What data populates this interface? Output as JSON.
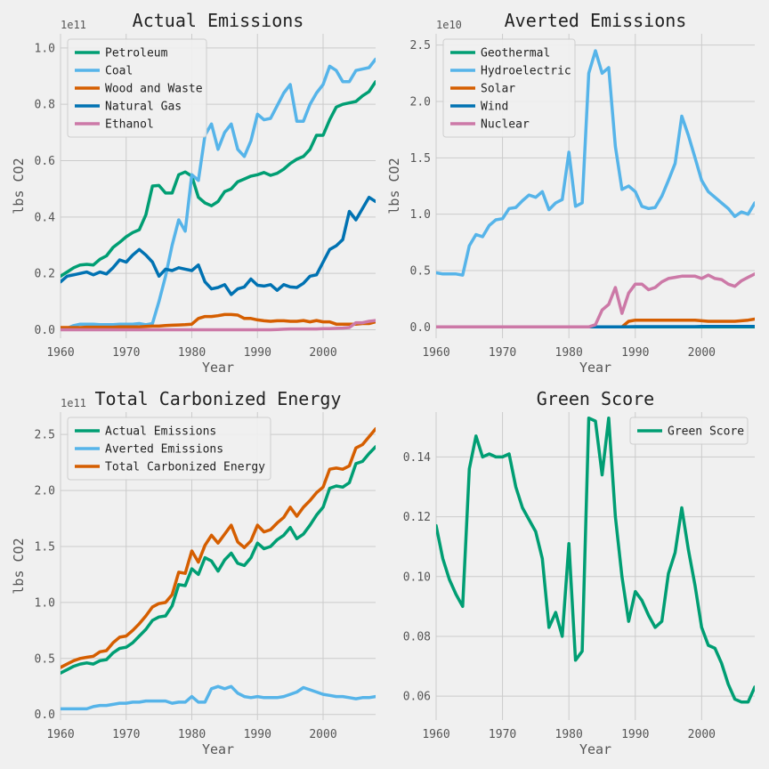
{
  "colors": {
    "background": "#f0f0f0",
    "grid": "#cbcbcb",
    "legend_bg": "#f0f0f0",
    "legend_border": "#cccccc"
  },
  "chart_data": [
    {
      "type": "line",
      "title": "Actual Emissions",
      "xlabel": "Year",
      "ylabel": "lbs CO2",
      "offset_label": "1e11",
      "xlim": [
        1960,
        2008
      ],
      "ylim": [
        -0.03,
        1.05
      ],
      "xticks": [
        1960,
        1970,
        1980,
        1990,
        2000
      ],
      "xtick_labels": [
        "1960",
        "1970",
        "1980",
        "1990",
        "2000"
      ],
      "yticks": [
        0.0,
        0.2,
        0.4,
        0.6,
        0.8,
        1.0
      ],
      "ytick_labels": [
        "0.0",
        "0.2",
        "0.4",
        "0.6",
        "0.8",
        "1.0"
      ],
      "legend_position": "top-left",
      "grid": true,
      "x": [
        1960,
        1961,
        1962,
        1963,
        1964,
        1965,
        1966,
        1967,
        1968,
        1969,
        1970,
        1971,
        1972,
        1973,
        1974,
        1975,
        1976,
        1977,
        1978,
        1979,
        1980,
        1981,
        1982,
        1983,
        1984,
        1985,
        1986,
        1987,
        1988,
        1989,
        1990,
        1991,
        1992,
        1993,
        1994,
        1995,
        1996,
        1997,
        1998,
        1999,
        2000,
        2001,
        2002,
        2003,
        2004,
        2005,
        2006,
        2007,
        2008
      ],
      "series": [
        {
          "name": "Petroleum",
          "color": "#009e73",
          "values": [
            0.19,
            0.205,
            0.22,
            0.23,
            0.232,
            0.23,
            0.25,
            0.262,
            0.292,
            0.31,
            0.33,
            0.345,
            0.355,
            0.408,
            0.51,
            0.512,
            0.485,
            0.485,
            0.55,
            0.56,
            0.545,
            0.47,
            0.45,
            0.44,
            0.455,
            0.49,
            0.5,
            0.525,
            0.535,
            0.545,
            0.55,
            0.558,
            0.548,
            0.555,
            0.57,
            0.59,
            0.605,
            0.615,
            0.64,
            0.69,
            0.69,
            0.745,
            0.79,
            0.8,
            0.805,
            0.81,
            0.83,
            0.845,
            0.88
          ]
        },
        {
          "name": "Coal",
          "color": "#56b4e9",
          "values": [
            0.002,
            0.005,
            0.015,
            0.02,
            0.02,
            0.02,
            0.018,
            0.018,
            0.018,
            0.02,
            0.02,
            0.02,
            0.022,
            0.018,
            0.022,
            0.1,
            0.19,
            0.3,
            0.39,
            0.35,
            0.55,
            0.53,
            0.69,
            0.73,
            0.64,
            0.7,
            0.73,
            0.64,
            0.615,
            0.67,
            0.765,
            0.745,
            0.75,
            0.795,
            0.84,
            0.87,
            0.74,
            0.74,
            0.8,
            0.84,
            0.87,
            0.935,
            0.92,
            0.88,
            0.88,
            0.92,
            0.925,
            0.93,
            0.96
          ]
        },
        {
          "name": "Wood and Waste",
          "color": "#d55e00",
          "values": [
            0.008,
            0.008,
            0.008,
            0.008,
            0.009,
            0.009,
            0.009,
            0.009,
            0.009,
            0.01,
            0.01,
            0.01,
            0.01,
            0.012,
            0.013,
            0.013,
            0.015,
            0.016,
            0.017,
            0.018,
            0.02,
            0.04,
            0.047,
            0.047,
            0.05,
            0.054,
            0.054,
            0.052,
            0.04,
            0.04,
            0.035,
            0.032,
            0.03,
            0.032,
            0.032,
            0.03,
            0.03,
            0.033,
            0.028,
            0.033,
            0.028,
            0.028,
            0.02,
            0.02,
            0.02,
            0.02,
            0.022,
            0.022,
            0.028
          ]
        },
        {
          "name": "Natural Gas",
          "color": "#0072b2",
          "values": [
            0.17,
            0.19,
            0.195,
            0.2,
            0.205,
            0.195,
            0.205,
            0.198,
            0.22,
            0.248,
            0.24,
            0.265,
            0.285,
            0.265,
            0.24,
            0.19,
            0.215,
            0.21,
            0.22,
            0.215,
            0.21,
            0.23,
            0.17,
            0.145,
            0.15,
            0.16,
            0.125,
            0.145,
            0.152,
            0.18,
            0.158,
            0.155,
            0.16,
            0.14,
            0.16,
            0.152,
            0.15,
            0.165,
            0.19,
            0.195,
            0.24,
            0.285,
            0.298,
            0.32,
            0.42,
            0.39,
            0.43,
            0.47,
            0.455
          ]
        },
        {
          "name": "Ethanol",
          "color": "#cc79a7",
          "values": [
            0,
            0,
            0,
            0,
            0,
            0,
            0,
            0,
            0,
            0,
            0,
            0,
            0,
            0,
            0,
            0,
            0,
            0,
            0,
            0,
            0,
            0,
            0,
            0,
            0,
            0,
            0,
            0,
            0,
            0,
            0,
            0,
            0,
            0.001,
            0.002,
            0.003,
            0.003,
            0.003,
            0.003,
            0.003,
            0.004,
            0.004,
            0.005,
            0.006,
            0.008,
            0.025,
            0.025,
            0.03,
            0.033
          ]
        }
      ]
    },
    {
      "type": "line",
      "title": "Averted Emissions",
      "xlabel": "Year",
      "ylabel": "lbs CO2",
      "offset_label": "1e10",
      "xlim": [
        1960,
        2008
      ],
      "ylim": [
        -0.1,
        2.6
      ],
      "xticks": [
        1960,
        1970,
        1980,
        1990,
        2000
      ],
      "xtick_labels": [
        "1960",
        "1970",
        "1980",
        "1990",
        "2000"
      ],
      "yticks": [
        0.0,
        0.5,
        1.0,
        1.5,
        2.0,
        2.5
      ],
      "ytick_labels": [
        "0.0",
        "0.5",
        "1.0",
        "1.5",
        "2.0",
        "2.5"
      ],
      "legend_position": "top-left",
      "grid": true,
      "x": [
        1960,
        1961,
        1962,
        1963,
        1964,
        1965,
        1966,
        1967,
        1968,
        1969,
        1970,
        1971,
        1972,
        1973,
        1974,
        1975,
        1976,
        1977,
        1978,
        1979,
        1980,
        1981,
        1982,
        1983,
        1984,
        1985,
        1986,
        1987,
        1988,
        1989,
        1990,
        1991,
        1992,
        1993,
        1994,
        1995,
        1996,
        1997,
        1998,
        1999,
        2000,
        2001,
        2002,
        2003,
        2004,
        2005,
        2006,
        2007,
        2008
      ],
      "series": [
        {
          "name": "Geothermal",
          "color": "#009e73",
          "values": [
            0,
            0,
            0,
            0,
            0,
            0,
            0,
            0,
            0,
            0,
            0,
            0,
            0,
            0,
            0,
            0,
            0,
            0,
            0,
            0,
            0,
            0,
            0,
            0,
            0,
            0,
            0,
            0,
            0,
            0,
            0,
            0,
            0,
            0,
            0,
            0,
            0,
            0,
            0,
            0,
            0,
            0,
            0,
            0,
            0,
            0,
            0,
            0,
            0
          ]
        },
        {
          "name": "Hydroelectric",
          "color": "#56b4e9",
          "values": [
            0.48,
            0.47,
            0.47,
            0.47,
            0.46,
            0.72,
            0.82,
            0.8,
            0.9,
            0.95,
            0.96,
            1.05,
            1.06,
            1.12,
            1.17,
            1.15,
            1.2,
            1.04,
            1.1,
            1.13,
            1.55,
            1.07,
            1.1,
            2.25,
            2.45,
            2.25,
            2.3,
            1.6,
            1.22,
            1.25,
            1.2,
            1.07,
            1.05,
            1.06,
            1.16,
            1.3,
            1.45,
            1.87,
            1.7,
            1.5,
            1.3,
            1.2,
            1.15,
            1.1,
            1.05,
            0.98,
            1.02,
            1.0,
            1.1
          ]
        },
        {
          "name": "Solar",
          "color": "#d55e00",
          "values": [
            0,
            0,
            0,
            0,
            0,
            0,
            0,
            0,
            0,
            0,
            0,
            0,
            0,
            0,
            0,
            0,
            0,
            0,
            0,
            0,
            0,
            0,
            0,
            0,
            0,
            0,
            0,
            0,
            0,
            0.05,
            0.06,
            0.06,
            0.06,
            0.06,
            0.06,
            0.06,
            0.06,
            0.06,
            0.06,
            0.06,
            0.055,
            0.05,
            0.05,
            0.05,
            0.05,
            0.05,
            0.055,
            0.06,
            0.07
          ]
        },
        {
          "name": "Wind",
          "color": "#0072b2",
          "values": [
            0,
            0,
            0,
            0,
            0,
            0,
            0,
            0,
            0,
            0,
            0,
            0,
            0,
            0,
            0,
            0,
            0,
            0,
            0,
            0,
            0,
            0,
            0,
            0,
            0,
            0,
            0,
            0,
            0,
            0.002,
            0.003,
            0.003,
            0.003,
            0.003,
            0.003,
            0.003,
            0.003,
            0.003,
            0.003,
            0.003,
            0.005,
            0.005,
            0.005,
            0.005,
            0.005,
            0.005,
            0.005,
            0.005,
            0.005
          ]
        },
        {
          "name": "Nuclear",
          "color": "#cc79a7",
          "values": [
            0,
            0,
            0,
            0,
            0,
            0,
            0,
            0,
            0,
            0,
            0,
            0,
            0,
            0,
            0,
            0,
            0,
            0,
            0,
            0,
            0,
            0,
            0,
            0,
            0.02,
            0.15,
            0.2,
            0.35,
            0.12,
            0.3,
            0.38,
            0.38,
            0.33,
            0.35,
            0.4,
            0.43,
            0.44,
            0.45,
            0.45,
            0.45,
            0.43,
            0.46,
            0.43,
            0.42,
            0.38,
            0.36,
            0.41,
            0.44,
            0.47
          ]
        }
      ]
    },
    {
      "type": "line",
      "title": "Total Carbonized Energy",
      "xlabel": "Year",
      "ylabel": "lbs CO2",
      "offset_label": "1e11",
      "xlim": [
        1960,
        2008
      ],
      "ylim": [
        -0.05,
        2.7
      ],
      "xticks": [
        1960,
        1970,
        1980,
        1990,
        2000
      ],
      "xtick_labels": [
        "1960",
        "1970",
        "1980",
        "1990",
        "2000"
      ],
      "yticks": [
        0.0,
        0.5,
        1.0,
        1.5,
        2.0,
        2.5
      ],
      "ytick_labels": [
        "0.0",
        "0.5",
        "1.0",
        "1.5",
        "2.0",
        "2.5"
      ],
      "legend_position": "top-left",
      "grid": true,
      "x": [
        1960,
        1961,
        1962,
        1963,
        1964,
        1965,
        1966,
        1967,
        1968,
        1969,
        1970,
        1971,
        1972,
        1973,
        1974,
        1975,
        1976,
        1977,
        1978,
        1979,
        1980,
        1981,
        1982,
        1983,
        1984,
        1985,
        1986,
        1987,
        1988,
        1989,
        1990,
        1991,
        1992,
        1993,
        1994,
        1995,
        1996,
        1997,
        1998,
        1999,
        2000,
        2001,
        2002,
        2003,
        2004,
        2005,
        2006,
        2007,
        2008
      ],
      "series": [
        {
          "name": "Actual Emissions",
          "color": "#009e73",
          "values": [
            0.37,
            0.4,
            0.43,
            0.45,
            0.46,
            0.45,
            0.48,
            0.49,
            0.55,
            0.59,
            0.6,
            0.64,
            0.7,
            0.76,
            0.84,
            0.87,
            0.88,
            0.97,
            1.16,
            1.15,
            1.3,
            1.25,
            1.4,
            1.37,
            1.28,
            1.38,
            1.44,
            1.35,
            1.33,
            1.4,
            1.53,
            1.48,
            1.5,
            1.56,
            1.6,
            1.67,
            1.57,
            1.61,
            1.69,
            1.78,
            1.85,
            2.02,
            2.04,
            2.03,
            2.07,
            2.24,
            2.26,
            2.33,
            2.39
          ]
        },
        {
          "name": "Averted Emissions",
          "color": "#56b4e9",
          "values": [
            0.05,
            0.05,
            0.05,
            0.05,
            0.05,
            0.07,
            0.08,
            0.08,
            0.09,
            0.1,
            0.1,
            0.11,
            0.11,
            0.12,
            0.12,
            0.12,
            0.12,
            0.1,
            0.11,
            0.11,
            0.16,
            0.11,
            0.11,
            0.23,
            0.25,
            0.23,
            0.25,
            0.19,
            0.16,
            0.15,
            0.16,
            0.15,
            0.15,
            0.15,
            0.16,
            0.18,
            0.2,
            0.24,
            0.22,
            0.2,
            0.18,
            0.17,
            0.16,
            0.16,
            0.15,
            0.14,
            0.15,
            0.15,
            0.16
          ]
        },
        {
          "name": "Total Carbonized Energy",
          "color": "#d55e00",
          "values": [
            0.42,
            0.45,
            0.48,
            0.5,
            0.51,
            0.52,
            0.56,
            0.57,
            0.64,
            0.69,
            0.7,
            0.75,
            0.81,
            0.88,
            0.96,
            0.99,
            1.0,
            1.07,
            1.27,
            1.26,
            1.46,
            1.36,
            1.51,
            1.6,
            1.53,
            1.61,
            1.69,
            1.54,
            1.49,
            1.55,
            1.69,
            1.63,
            1.65,
            1.71,
            1.76,
            1.85,
            1.77,
            1.85,
            1.91,
            1.98,
            2.03,
            2.19,
            2.2,
            2.19,
            2.22,
            2.38,
            2.41,
            2.48,
            2.55
          ]
        }
      ]
    },
    {
      "type": "line",
      "title": "Green Score",
      "xlabel": "Year",
      "ylabel": "",
      "offset_label": "",
      "xlim": [
        1960,
        2008
      ],
      "ylim": [
        0.052,
        0.155
      ],
      "xticks": [
        1960,
        1970,
        1980,
        1990,
        2000
      ],
      "xtick_labels": [
        "1960",
        "1970",
        "1980",
        "1990",
        "2000"
      ],
      "yticks": [
        0.06,
        0.08,
        0.1,
        0.12,
        0.14
      ],
      "ytick_labels": [
        "0.06",
        "0.08",
        "0.10",
        "0.12",
        "0.14"
      ],
      "legend_position": "top-right",
      "grid": true,
      "x": [
        1960,
        1961,
        1962,
        1963,
        1964,
        1965,
        1966,
        1967,
        1968,
        1969,
        1970,
        1971,
        1972,
        1973,
        1974,
        1975,
        1976,
        1977,
        1978,
        1979,
        1980,
        1981,
        1982,
        1983,
        1984,
        1985,
        1986,
        1987,
        1988,
        1989,
        1990,
        1991,
        1992,
        1993,
        1994,
        1995,
        1996,
        1997,
        1998,
        1999,
        2000,
        2001,
        2002,
        2003,
        2004,
        2005,
        2006,
        2007,
        2008
      ],
      "series": [
        {
          "name": "Green Score",
          "color": "#009e73",
          "values": [
            0.117,
            0.106,
            0.099,
            0.094,
            0.09,
            0.136,
            0.147,
            0.14,
            0.141,
            0.14,
            0.14,
            0.141,
            0.13,
            0.123,
            0.119,
            0.115,
            0.106,
            0.083,
            0.088,
            0.08,
            0.111,
            0.072,
            0.075,
            0.153,
            0.152,
            0.134,
            0.153,
            0.12,
            0.1,
            0.085,
            0.095,
            0.092,
            0.087,
            0.083,
            0.085,
            0.101,
            0.108,
            0.123,
            0.109,
            0.097,
            0.083,
            0.077,
            0.076,
            0.071,
            0.064,
            0.059,
            0.058,
            0.058,
            0.063
          ]
        }
      ]
    }
  ]
}
